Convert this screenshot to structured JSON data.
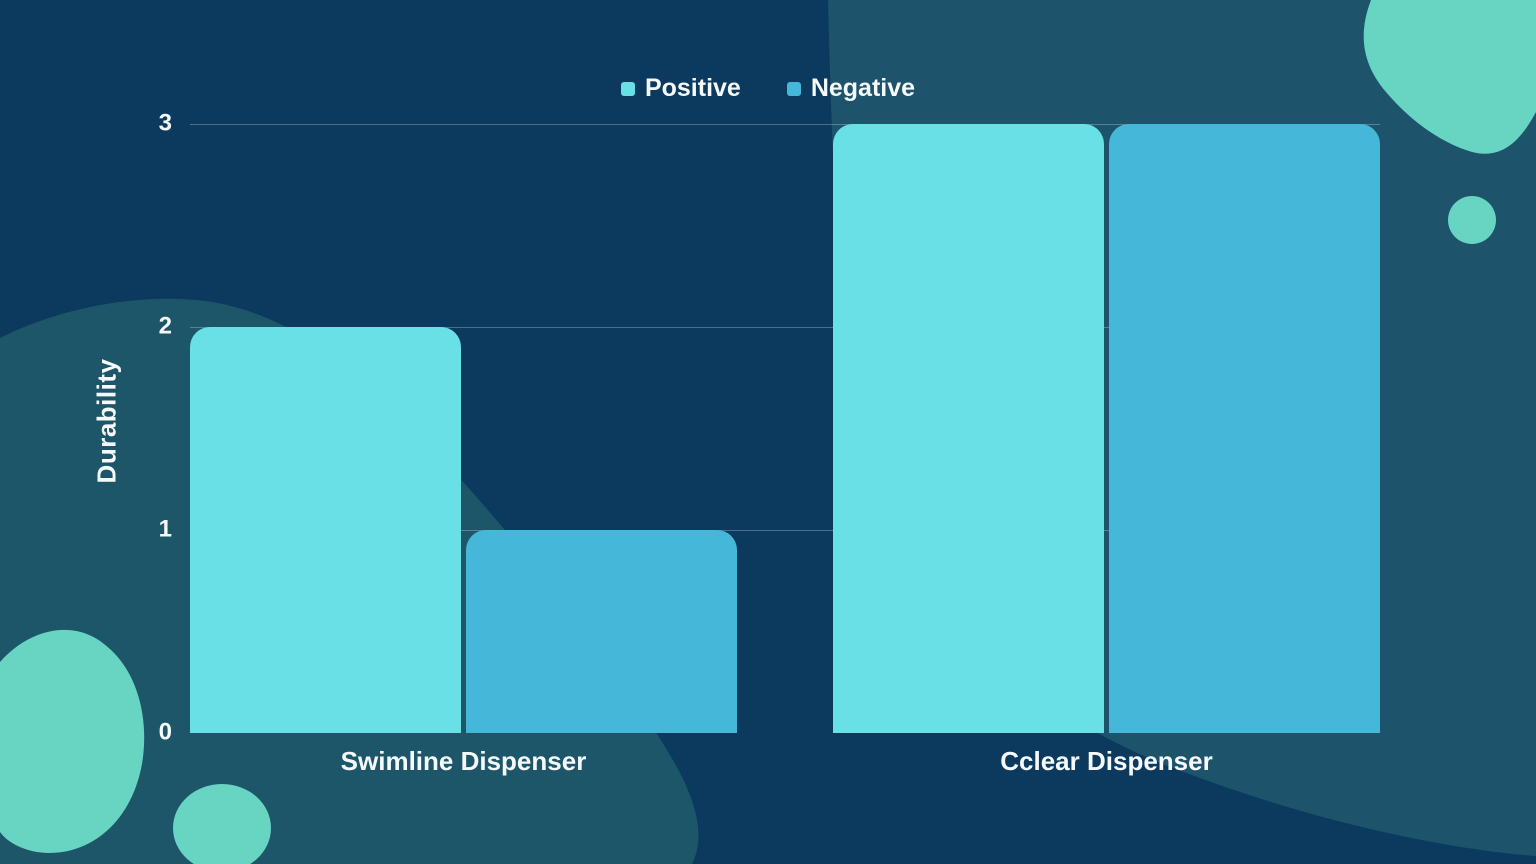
{
  "chart_data": {
    "type": "bar",
    "title": "",
    "ylabel": "Durability",
    "xlabel": "",
    "categories": [
      "Swimline Dispenser",
      "Cclear Dispenser"
    ],
    "series": [
      {
        "name": "Positive",
        "color": "#69E0E6",
        "values": [
          2,
          3
        ]
      },
      {
        "name": "Negative",
        "color": "#45B8DA",
        "values": [
          1,
          3
        ]
      }
    ],
    "ylim": [
      0,
      3
    ],
    "yticks": [
      0,
      1,
      2,
      3
    ],
    "grid": "horizontal lines at 1, 2, 3",
    "legend_position": "top-center"
  },
  "colors": {
    "background": "#0C3A5E",
    "panel_top_right": "#1D546B",
    "panel_bottom_left": "#1E5669",
    "blob_accent": "#68D4C2",
    "text": "#F5F9FC",
    "gridline": "rgba(205,228,242,0.32)"
  }
}
